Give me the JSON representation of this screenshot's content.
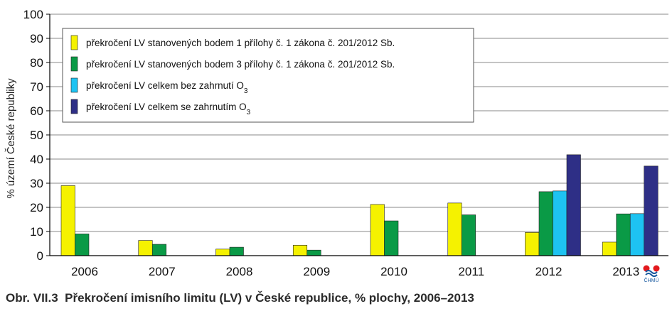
{
  "chart_data": {
    "type": "bar",
    "categories": [
      "2006",
      "2007",
      "2008",
      "2009",
      "2010",
      "2011",
      "2012",
      "2013"
    ],
    "series": [
      {
        "name": "překročení LV stanovených bodem 1 přílohy č. 1 zákona č. 201/2012 Sb.",
        "color": "#f5f200",
        "values": [
          29,
          6.3,
          2.7,
          4.3,
          21.2,
          21.8,
          9.6,
          5.6
        ]
      },
      {
        "name": "překročení LV stanovených bodem 3 přílohy č. 1 zákona č. 201/2012 Sb.",
        "color": "#0a9a46",
        "values": [
          9,
          4.7,
          3.5,
          2.3,
          14.4,
          16.9,
          26.5,
          17.3
        ]
      },
      {
        "name": "překročení LV celkem bez zahrnutí O",
        "name_sub": "3",
        "color": "#1ec3f2",
        "values": [
          null,
          null,
          null,
          null,
          null,
          null,
          26.8,
          17.4
        ]
      },
      {
        "name": "překročení LV celkem se zahrnutím O",
        "name_sub": "3",
        "color": "#2e2f86",
        "values": [
          null,
          null,
          null,
          null,
          null,
          null,
          41.8,
          37.1
        ]
      }
    ],
    "ylabel": "% území České republiky",
    "ylim": [
      0,
      100
    ],
    "yticks": [
      0,
      10,
      20,
      30,
      40,
      50,
      60,
      70,
      80,
      90,
      100
    ],
    "grid": true,
    "legend": "top-left"
  },
  "caption": {
    "prefix": "Obr. VII.3",
    "text": "Překročení imisního limitu (LV) v České republice, % plochy, 2006–2013"
  },
  "logo": {
    "text": "ČHMÚ"
  }
}
